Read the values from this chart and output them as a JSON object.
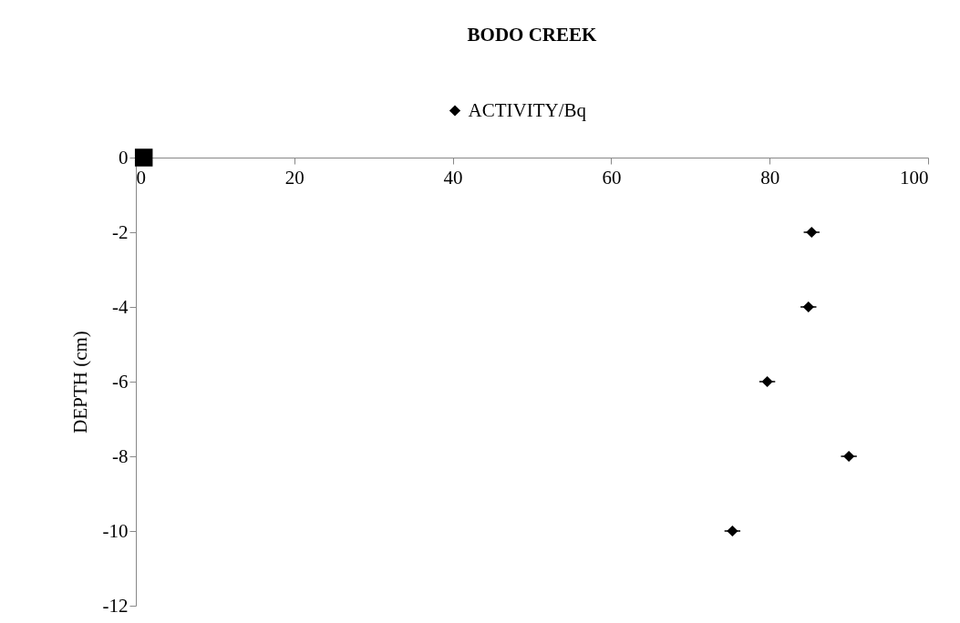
{
  "chart_data": {
    "type": "scatter",
    "title": "BODO CREEK",
    "ylabel": "DEPTH (cm)",
    "xlim": [
      0,
      100
    ],
    "xticks": [
      0,
      20,
      40,
      60,
      80,
      100
    ],
    "ylim": [
      -12,
      0
    ],
    "yticks": [
      -12,
      -10,
      -8,
      -6,
      -4,
      -2,
      0
    ],
    "grid": false,
    "legend": "top",
    "series": [
      {
        "name": "ACTIVITY/Bq",
        "color": "#000000",
        "marker": "diamond",
        "x": [
          85.3,
          84.9,
          79.7,
          90.0,
          75.3
        ],
        "values": [
          -2,
          -4,
          -6,
          -8,
          -10
        ],
        "xerrors": [
          1,
          1,
          1,
          1,
          1
        ],
        "errors": [
          0.1,
          0.1,
          0.1,
          0.1,
          0.1
        ]
      },
      {
        "color": "#000000",
        "marker": "square",
        "x": [
          1
        ],
        "values": [
          0
        ]
      }
    ]
  }
}
